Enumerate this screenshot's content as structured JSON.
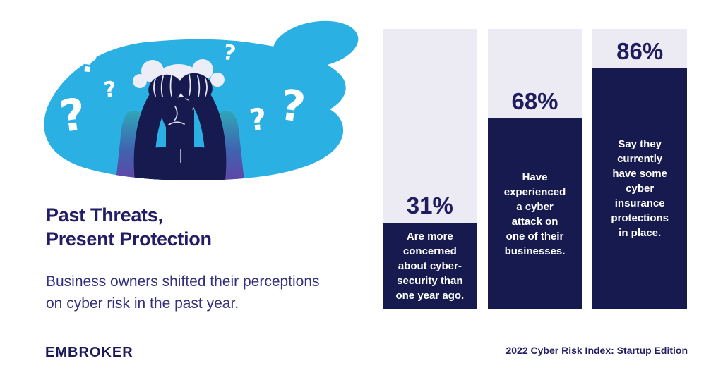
{
  "colors": {
    "background": "#FFFFFF",
    "accent_cyan": "#2BB0E4",
    "navy": "#171A4E",
    "heading_navy": "#221D64",
    "subtitle_indigo": "#34307E",
    "track_gray": "#ECEBF4",
    "hair_white": "#EDEDF7",
    "gradient_teal": "#2FA7B8",
    "gradient_purple": "#6A3DA4",
    "bar_text_white": "#FFFFFF"
  },
  "header": {
    "title_line1": "Past Threats,",
    "title_line2": "Present Protection",
    "subtitle": "Business owners shifted their perceptions\non cyber risk in the past year."
  },
  "branding": {
    "logo_text": "EMBROKER"
  },
  "footer": {
    "source_label": "2022 Cyber Risk Index: Startup Edition"
  },
  "illustration": {
    "question_mark": "?"
  },
  "chart_data": {
    "type": "bar",
    "orientation": "vertical",
    "unit": "%",
    "ylim": [
      0,
      100
    ],
    "grid": false,
    "legend": false,
    "title": "Past Threats, Present Protection",
    "subtitle": "Business owners shifted their perceptions on cyber risk in the past year.",
    "source": "2022 Cyber Risk Index: Startup Edition",
    "categories": [
      "Are more concerned about cyber-security than one year ago.",
      "Have experienced a cyber attack on one of their businesses.",
      "Say they currently have some cyber insurance protections in place."
    ],
    "values": [
      31,
      68,
      86
    ],
    "bars": [
      {
        "value": 31,
        "label": "31%",
        "description": "Are more\nconcerned\nabout cyber-\nsecurity than\none year ago."
      },
      {
        "value": 68,
        "label": "68%",
        "description": "Have\nexperienced\na cyber\nattack on\none of their\nbusinesses."
      },
      {
        "value": 86,
        "label": "86%",
        "description": "Say they\ncurrently\nhave some\ncyber\ninsurance\nprotections\nin place."
      }
    ]
  }
}
